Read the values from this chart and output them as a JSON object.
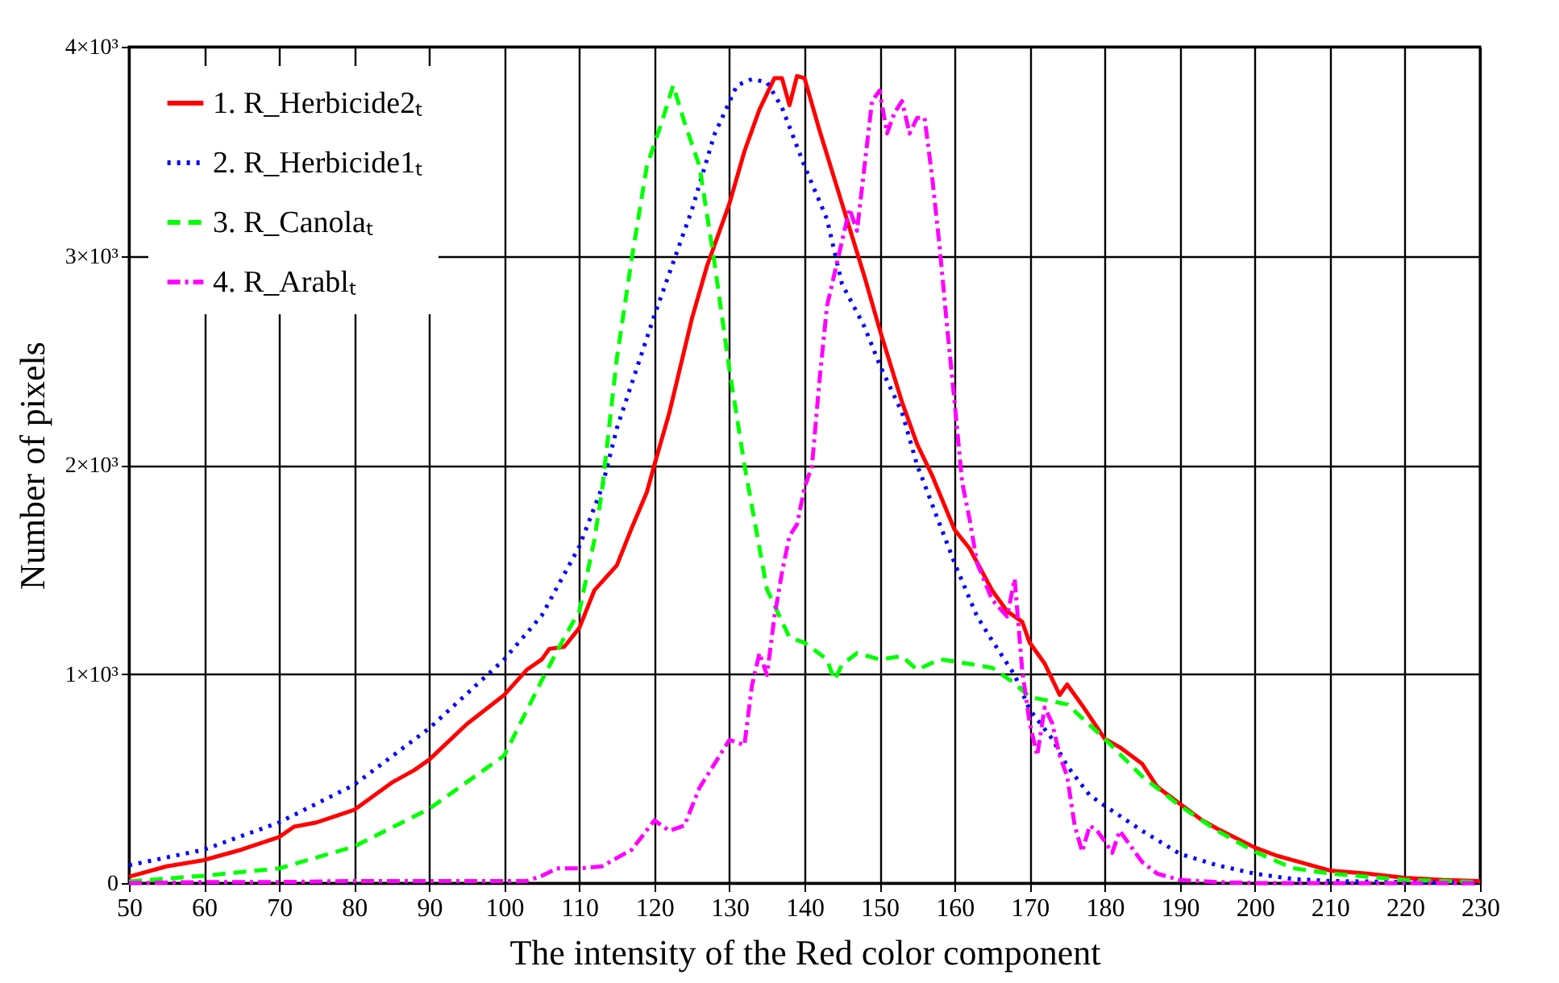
{
  "chart_data": {
    "type": "line",
    "xlabel": "The intensity of the Red color component",
    "ylabel": "Number of pixels",
    "xlim": [
      50,
      230
    ],
    "xticks": [
      50,
      60,
      70,
      80,
      90,
      100,
      110,
      120,
      130,
      140,
      150,
      160,
      170,
      180,
      190,
      200,
      210,
      220,
      230
    ],
    "ylim": [
      0,
      4000
    ],
    "yticks": [
      0,
      {
        "value": 1000,
        "label": "1×10³"
      },
      {
        "value": 2000,
        "label": "2×10³"
      },
      {
        "value": 3000,
        "label": "3×10³"
      },
      {
        "value": 4000,
        "label": "4×10³"
      }
    ],
    "grid": true,
    "legend": "top left",
    "series": [
      {
        "name": "1. R_Herbicide2ₜ",
        "color": "#ff0000",
        "line_style": "solid",
        "x": [
          50,
          55,
          60,
          65,
          70,
          72,
          75,
          80,
          85,
          88,
          90,
          95,
          100,
          103,
          105,
          106,
          108,
          110,
          112,
          115,
          117,
          119,
          120,
          122,
          125,
          127,
          130,
          132,
          134,
          136,
          137,
          138,
          139,
          140,
          142,
          145,
          148,
          150,
          153,
          155,
          157,
          160,
          162,
          165,
          167,
          169,
          170,
          172,
          174,
          175,
          177,
          180,
          182,
          185,
          187,
          190,
          193,
          195,
          200,
          203,
          205,
          210,
          215,
          220,
          225,
          230
        ],
        "values": [
          30,
          80,
          110,
          160,
          220,
          270,
          290,
          350,
          480,
          540,
          590,
          760,
          900,
          1020,
          1070,
          1120,
          1130,
          1220,
          1400,
          1520,
          1700,
          1870,
          2000,
          2250,
          2700,
          2950,
          3250,
          3500,
          3700,
          3850,
          3850,
          3720,
          3860,
          3850,
          3600,
          3250,
          2900,
          2650,
          2300,
          2100,
          1950,
          1690,
          1600,
          1400,
          1300,
          1250,
          1150,
          1050,
          900,
          950,
          850,
          690,
          650,
          570,
          460,
          380,
          300,
          260,
          170,
          130,
          110,
          60,
          45,
          25,
          15,
          10
        ]
      },
      {
        "name": "2. R_Herbicide1ₜ",
        "color": "#0000ff",
        "line_style": "dotted",
        "x": [
          50,
          60,
          70,
          80,
          90,
          100,
          105,
          110,
          113,
          115,
          120,
          125,
          128,
          131,
          133,
          135,
          137,
          140,
          143,
          145,
          148,
          150,
          153,
          155,
          160,
          163,
          165,
          168,
          170,
          173,
          175,
          178,
          180,
          185,
          190,
          195,
          200,
          205,
          210,
          220,
          230
        ],
        "values": [
          85,
          160,
          290,
          470,
          740,
          1070,
          1280,
          1610,
          1890,
          2175,
          2715,
          3220,
          3580,
          3815,
          3845,
          3830,
          3710,
          3430,
          3175,
          2865,
          2660,
          2480,
          2250,
          2000,
          1530,
          1275,
          1160,
          995,
          830,
          690,
          560,
          420,
          370,
          250,
          140,
          85,
          45,
          20,
          10,
          5,
          0
        ]
      },
      {
        "name": "3. R_Canolaₜ",
        "color": "#00ff00",
        "line_style": "dashed",
        "x": [
          50,
          60,
          70,
          80,
          90,
          100,
          105,
          108,
          110,
          112,
          113,
          115,
          117,
          119,
          121,
          122.5,
          124,
          126,
          128,
          130,
          132,
          135,
          138,
          140,
          143,
          144,
          145,
          147,
          150,
          153,
          155,
          158,
          160,
          165,
          168,
          170,
          175,
          180,
          185,
          190,
          195,
          200,
          205,
          210,
          220,
          230
        ],
        "values": [
          8,
          35,
          70,
          175,
          355,
          610,
          970,
          1175,
          1300,
          1640,
          1870,
          2510,
          2990,
          3430,
          3640,
          3815,
          3640,
          3430,
          2970,
          2455,
          2000,
          1405,
          1175,
          1150,
          1070,
          970,
          1045,
          1100,
          1070,
          1085,
          1020,
          1070,
          1060,
          1030,
          955,
          890,
          855,
          690,
          510,
          370,
          250,
          150,
          72,
          46,
          15,
          5
        ]
      },
      {
        "name": "4. R_Arablₜ",
        "color": "#ff00ff",
        "line_style": "dashdot",
        "x": [
          50,
          60,
          70,
          80,
          90,
          100,
          103,
          105,
          107,
          110,
          113,
          115,
          117,
          120,
          122,
          124,
          126,
          128,
          130,
          132,
          133,
          134,
          135,
          136,
          137,
          138,
          139,
          140,
          141,
          142,
          143,
          144,
          145,
          146,
          147,
          148,
          149,
          150,
          151,
          152,
          153,
          154,
          155,
          156,
          157,
          158,
          159,
          160,
          161,
          162,
          163,
          165,
          167,
          168,
          169,
          170,
          171,
          172,
          173,
          174,
          175,
          176,
          177,
          178,
          179,
          180,
          181,
          182,
          183,
          185,
          187,
          190,
          195,
          200,
          210,
          220,
          230
        ],
        "values": [
          0,
          5,
          5,
          10,
          10,
          10,
          10,
          35,
          70,
          70,
          80,
          120,
          160,
          300,
          250,
          275,
          455,
          570,
          685,
          660,
          945,
          1100,
          995,
          1275,
          1485,
          1660,
          1715,
          1890,
          1995,
          2405,
          2760,
          2915,
          3070,
          3225,
          3120,
          3430,
          3740,
          3790,
          3585,
          3685,
          3740,
          3585,
          3660,
          3660,
          3380,
          3045,
          2660,
          2300,
          1917,
          1740,
          1530,
          1355,
          1275,
          1455,
          1020,
          765,
          610,
          840,
          765,
          610,
          510,
          275,
          150,
          275,
          250,
          200,
          145,
          250,
          200,
          100,
          45,
          15,
          5,
          0,
          0,
          0,
          0
        ]
      }
    ]
  }
}
